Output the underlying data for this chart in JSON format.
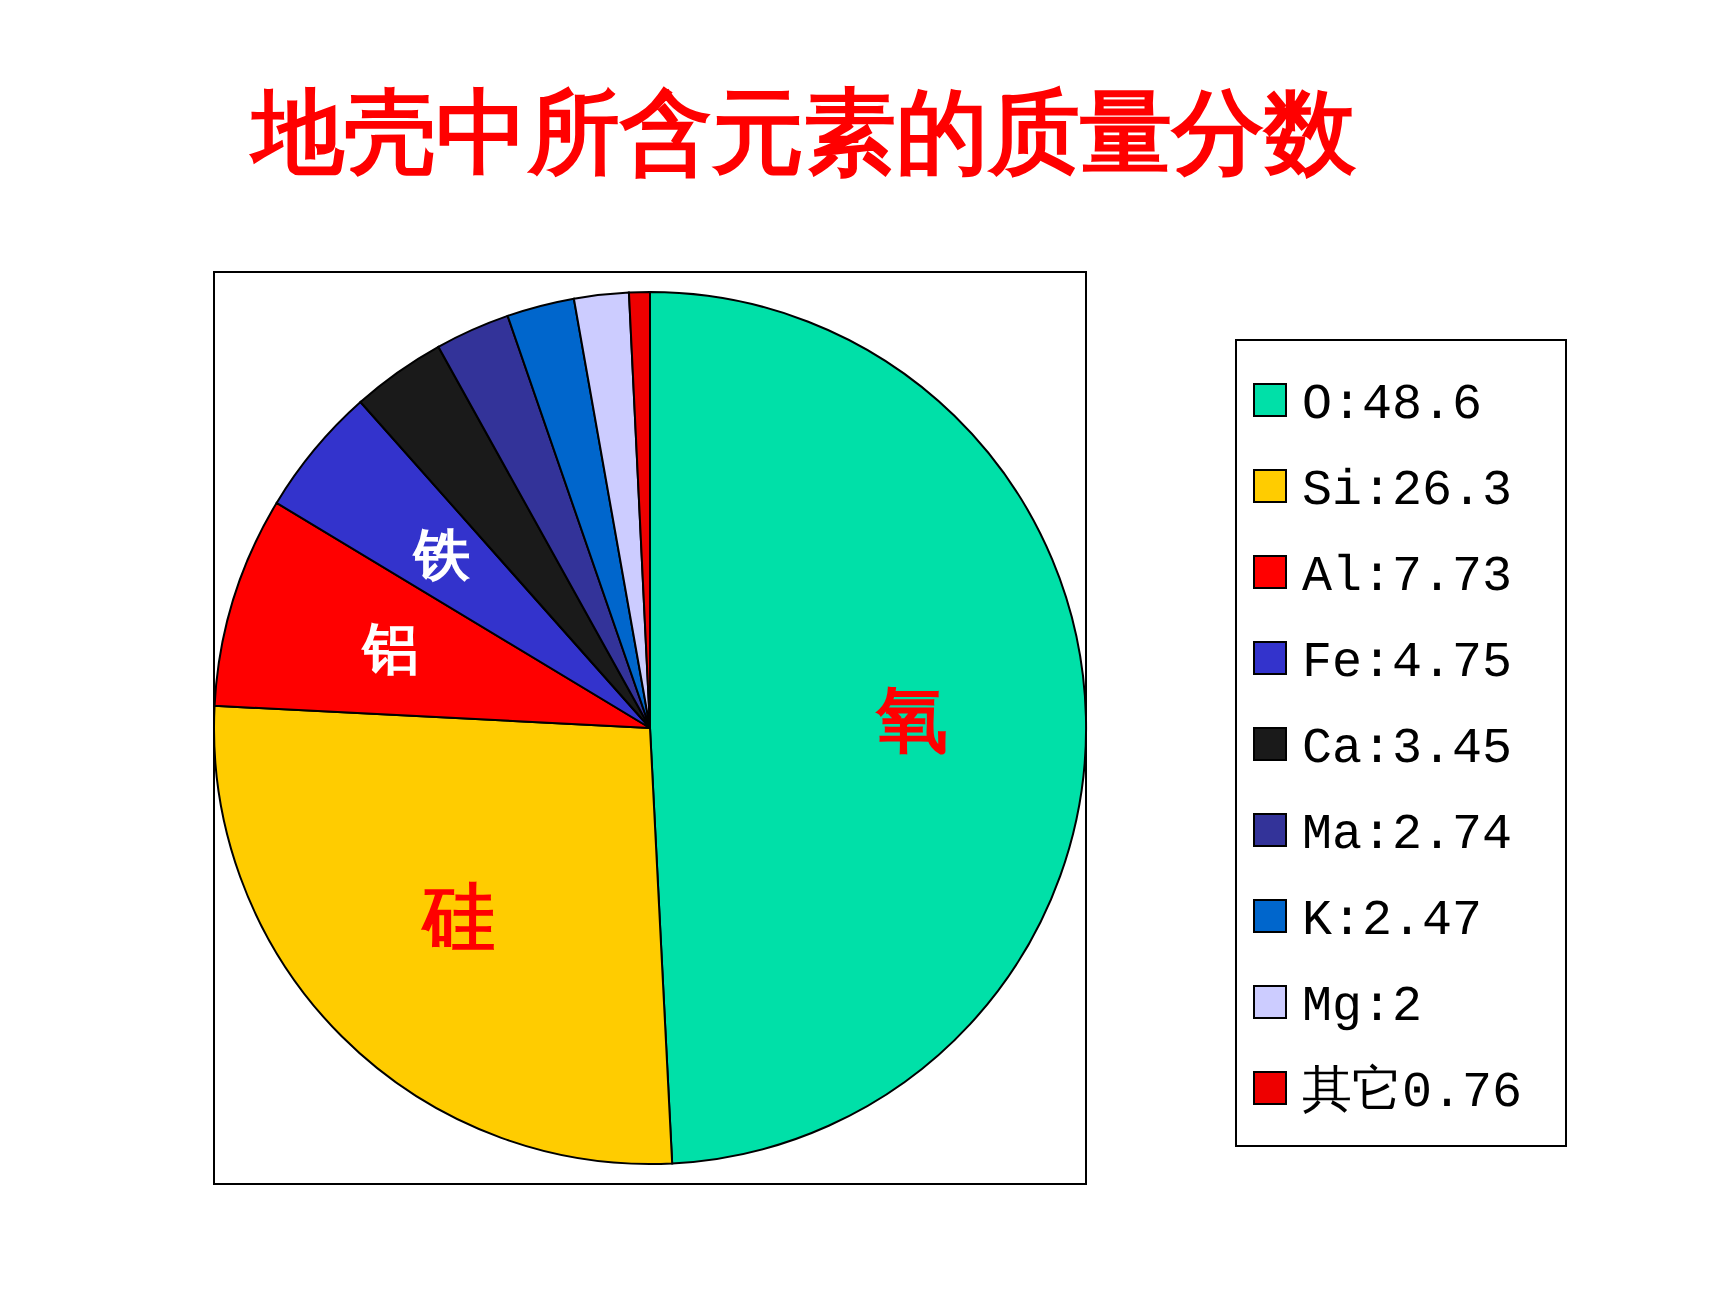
{
  "chart_data": {
    "type": "pie",
    "title": "地壳中所含元素的质量分数",
    "categories": [
      "O:48.6",
      "Si:26.3",
      "Al:7.73",
      "Fe:4.75",
      "Ca:3.45",
      "Ma:2.74",
      "K:2.47",
      "Mg:2",
      "其它0.76"
    ],
    "values": [
      48.6,
      26.3,
      7.73,
      4.75,
      3.45,
      2.74,
      2.47,
      2,
      0.76
    ],
    "colors": [
      "#00e0a8",
      "#ffcc00",
      "#ff0000",
      "#3333cc",
      "#1a1a1a",
      "#333399",
      "#0066cc",
      "#ccccff",
      "#ee0000"
    ],
    "annotations": [
      {
        "text": "氧",
        "x": "O:48.6"
      },
      {
        "text": "硅",
        "x": "Si:26.3"
      },
      {
        "text": "铝",
        "x": "Al:7.73"
      },
      {
        "text": "铁",
        "x": "Fe:4.75"
      }
    ],
    "legend": "right"
  }
}
